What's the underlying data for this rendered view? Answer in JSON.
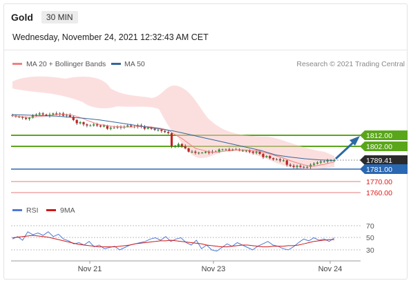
{
  "header": {
    "instrument": "Gold",
    "timeframe": "30 MIN",
    "datetime": "Wednesday, November 24, 2021 12:32:43 AM CET"
  },
  "chart_data": [
    {
      "type": "candlestick",
      "legend": [
        {
          "label": "MA 20 + Bollinger Bands",
          "color": "#f08080"
        },
        {
          "label": "MA 50",
          "color": "#33669a"
        }
      ],
      "credit": "Research © 2021 Trading Central",
      "x_ticks": [
        "Nov 21",
        "Nov 23",
        "Nov 24"
      ],
      "y_range": [
        1755,
        1840
      ],
      "close_series": [
        1830,
        1829,
        1829,
        1828,
        1827,
        1828,
        1830,
        1831,
        1832,
        1831,
        1830,
        1831,
        1832,
        1831,
        1832,
        1830,
        1831,
        1829,
        1826,
        1823,
        1824,
        1822,
        1821,
        1821,
        1822,
        1821,
        1820,
        1821,
        1818,
        1819,
        1819,
        1820,
        1819,
        1820,
        1821,
        1820,
        1820,
        1821,
        1820,
        1818,
        1819,
        1818,
        1817,
        1817,
        1816,
        1815,
        1814,
        1802,
        1802,
        1804,
        1802,
        1800,
        1797,
        1797,
        1796,
        1796,
        1796,
        1797,
        1796,
        1797,
        1797,
        1799,
        1799,
        1799,
        1798,
        1799,
        1799,
        1798,
        1798,
        1798,
        1797,
        1796,
        1797,
        1795,
        1792,
        1793,
        1791,
        1790,
        1790,
        1789,
        1789,
        1785,
        1784,
        1783,
        1784,
        1783,
        1783,
        1783,
        1785,
        1786,
        1787,
        1788,
        1788,
        1789,
        1789,
        1789
      ],
      "ma50_series": [
        1831,
        1830.5,
        1830,
        1829.5,
        1828.5,
        1827.5,
        1826,
        1824,
        1822,
        1820,
        1818,
        1816,
        1813,
        1810,
        1807,
        1804,
        1801,
        1798,
        1794,
        1792,
        1790.5,
        1789.5,
        1789
      ],
      "levels": [
        {
          "value": "1812.00",
          "style": "resistance",
          "color": "#5aa61a",
          "label_bg": "#5aa61a"
        },
        {
          "value": "1802.00",
          "style": "resistance",
          "color": "#5aa61a",
          "label_bg": "#5aa61a"
        },
        {
          "value": "1789.41",
          "style": "last-price",
          "color": "#9a9a9a",
          "label_bg": "#2a2a2a"
        },
        {
          "value": "1781.00",
          "style": "pivot",
          "color": "#2a68b2",
          "label_bg": "#2a68b2"
        },
        {
          "value": "1770.00",
          "style": "support",
          "color": "#e87a7a",
          "label_text": "#e01616"
        },
        {
          "value": "1760.00",
          "style": "support",
          "color": "#e87a7a",
          "label_text": "#e01616"
        }
      ],
      "forecast_arrow_color": "#2d6aa3"
    },
    {
      "type": "line",
      "legend": [
        {
          "label": "RSI",
          "color": "#4d79d6"
        },
        {
          "label": "9MA",
          "color": "#d31515"
        }
      ],
      "y_range": [
        20,
        80
      ],
      "y_ticks": [
        "70",
        "50",
        "30"
      ],
      "rsi_series": [
        48,
        52,
        46,
        60,
        55,
        58,
        54,
        60,
        52,
        56,
        48,
        45,
        40,
        42,
        38,
        44,
        35,
        38,
        32,
        34,
        36,
        30,
        34,
        38,
        40,
        42,
        44,
        48,
        50,
        46,
        52,
        44,
        48,
        50,
        42,
        38,
        46,
        32,
        38,
        30,
        28,
        34,
        40,
        36,
        42,
        38,
        34,
        30,
        36,
        40,
        44,
        38,
        36,
        32,
        30,
        35,
        42,
        48,
        45,
        50,
        46,
        48,
        44,
        50
      ],
      "ma9_series": [
        50,
        51,
        52,
        53,
        54,
        53,
        52,
        51,
        49,
        47,
        45,
        43,
        41,
        39,
        38,
        37,
        36,
        35,
        35,
        35,
        35,
        36,
        37,
        38,
        40,
        41,
        42,
        43,
        44,
        45,
        45,
        46,
        45,
        44,
        43,
        42,
        41,
        40,
        38,
        37,
        36,
        35,
        35,
        36,
        37,
        38,
        38,
        37,
        36,
        35,
        35,
        36,
        36,
        36,
        37,
        37,
        38,
        40,
        42,
        44,
        45,
        46,
        47,
        47
      ]
    }
  ]
}
